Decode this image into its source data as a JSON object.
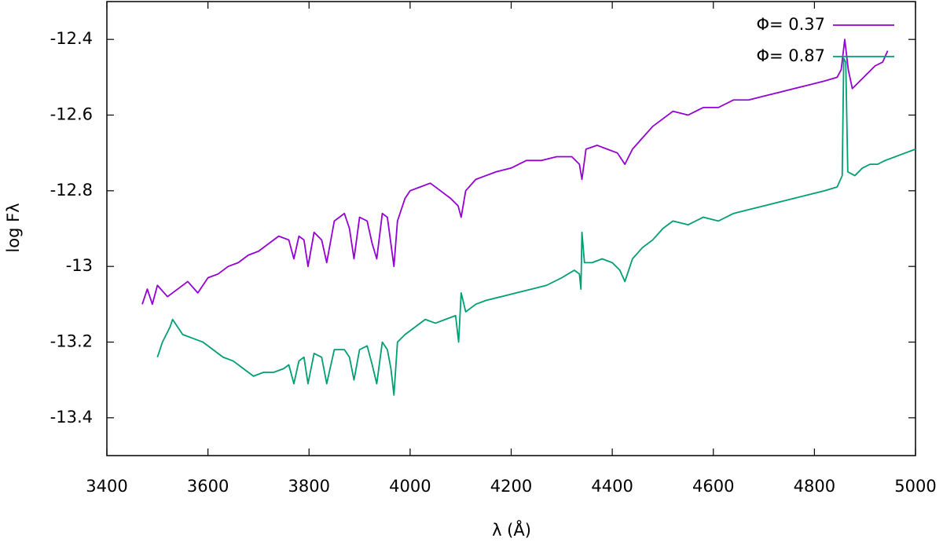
{
  "chart_data": {
    "type": "line",
    "xlabel": "λ (Å)",
    "ylabel": "log Fλ",
    "xlim": [
      3400,
      5000
    ],
    "xticks": [
      3400,
      3600,
      3800,
      4000,
      4200,
      4400,
      4600,
      4800,
      5000
    ],
    "ylim": [
      -13.5,
      -12.3
    ],
    "yticks": [
      -13.4,
      -13.2,
      -13,
      -12.8,
      -12.6,
      -12.4
    ],
    "grid": false,
    "legend": "top right",
    "series": [
      {
        "name": "Φ= 0.37",
        "color": "#9400d3",
        "x": [
          3470,
          3480,
          3490,
          3500,
          3520,
          3540,
          3560,
          3580,
          3600,
          3620,
          3640,
          3660,
          3680,
          3700,
          3720,
          3740,
          3760,
          3770,
          3780,
          3790,
          3798,
          3810,
          3825,
          3835,
          3850,
          3870,
          3880,
          3889,
          3900,
          3915,
          3925,
          3934,
          3945,
          3955,
          3962,
          3968,
          3975,
          3990,
          4000,
          4020,
          4040,
          4060,
          4080,
          4095,
          4101,
          4110,
          4130,
          4150,
          4170,
          4200,
          4230,
          4260,
          4290,
          4320,
          4335,
          4340,
          4348,
          4370,
          4390,
          4410,
          4425,
          4440,
          4460,
          4480,
          4500,
          4520,
          4550,
          4580,
          4610,
          4640,
          4670,
          4700,
          4730,
          4760,
          4790,
          4820,
          4845,
          4853,
          4860,
          4867,
          4875,
          4890,
          4905,
          4920,
          4935,
          4945
        ],
        "values": [
          -13.1,
          -13.06,
          -13.1,
          -13.05,
          -13.08,
          -13.06,
          -13.04,
          -13.07,
          -13.03,
          -13.02,
          -13.0,
          -12.99,
          -12.97,
          -12.96,
          -12.94,
          -12.92,
          -12.93,
          -12.98,
          -12.92,
          -12.93,
          -13.0,
          -12.91,
          -12.93,
          -12.99,
          -12.88,
          -12.86,
          -12.9,
          -12.98,
          -12.87,
          -12.88,
          -12.94,
          -12.98,
          -12.86,
          -12.87,
          -12.94,
          -13.0,
          -12.88,
          -12.82,
          -12.8,
          -12.79,
          -12.78,
          -12.8,
          -12.82,
          -12.84,
          -12.87,
          -12.8,
          -12.77,
          -12.76,
          -12.75,
          -12.74,
          -12.72,
          -12.72,
          -12.71,
          -12.71,
          -12.73,
          -12.77,
          -12.69,
          -12.68,
          -12.69,
          -12.7,
          -12.73,
          -12.69,
          -12.66,
          -12.63,
          -12.61,
          -12.59,
          -12.6,
          -12.58,
          -12.58,
          -12.56,
          -12.56,
          -12.55,
          -12.54,
          -12.53,
          -12.52,
          -12.51,
          -12.5,
          -12.48,
          -12.4,
          -12.48,
          -12.53,
          -12.51,
          -12.49,
          -12.47,
          -12.46,
          -12.43
        ]
      },
      {
        "name": "Φ= 0.87",
        "color": "#009e73",
        "x": [
          3500,
          3510,
          3525,
          3530,
          3550,
          3570,
          3590,
          3610,
          3630,
          3650,
          3670,
          3690,
          3710,
          3730,
          3750,
          3760,
          3770,
          3780,
          3790,
          3798,
          3810,
          3825,
          3835,
          3850,
          3870,
          3880,
          3889,
          3900,
          3915,
          3925,
          3934,
          3945,
          3955,
          3962,
          3968,
          3975,
          3990,
          4010,
          4030,
          4050,
          4070,
          4090,
          4096,
          4101,
          4110,
          4130,
          4150,
          4180,
          4210,
          4240,
          4270,
          4300,
          4325,
          4335,
          4338,
          4340,
          4345,
          4360,
          4380,
          4400,
          4415,
          4425,
          4440,
          4460,
          4480,
          4500,
          4520,
          4550,
          4580,
          4610,
          4640,
          4670,
          4700,
          4730,
          4760,
          4790,
          4820,
          4845,
          4855,
          4858,
          4862,
          4866,
          4880,
          4895,
          4910,
          4925,
          4940,
          4960,
          4980,
          5000
        ],
        "values": [
          -13.24,
          -13.2,
          -13.16,
          -13.14,
          -13.18,
          -13.19,
          -13.2,
          -13.22,
          -13.24,
          -13.25,
          -13.27,
          -13.29,
          -13.28,
          -13.28,
          -13.27,
          -13.26,
          -13.31,
          -13.25,
          -13.24,
          -13.31,
          -13.23,
          -13.24,
          -13.31,
          -13.22,
          -13.22,
          -13.24,
          -13.3,
          -13.22,
          -13.21,
          -13.26,
          -13.31,
          -13.2,
          -13.22,
          -13.27,
          -13.34,
          -13.2,
          -13.18,
          -13.16,
          -13.14,
          -13.15,
          -13.14,
          -13.13,
          -13.2,
          -13.07,
          -13.12,
          -13.1,
          -13.09,
          -13.08,
          -13.07,
          -13.06,
          -13.05,
          -13.03,
          -13.01,
          -13.02,
          -13.06,
          -12.91,
          -12.99,
          -12.99,
          -12.98,
          -12.99,
          -13.01,
          -13.04,
          -12.98,
          -12.95,
          -12.93,
          -12.9,
          -12.88,
          -12.89,
          -12.87,
          -12.88,
          -12.86,
          -12.85,
          -12.84,
          -12.83,
          -12.82,
          -12.81,
          -12.8,
          -12.79,
          -12.76,
          -12.45,
          -12.46,
          -12.75,
          -12.76,
          -12.74,
          -12.73,
          -12.73,
          -12.72,
          -12.71,
          -12.7,
          -12.69
        ]
      }
    ]
  }
}
